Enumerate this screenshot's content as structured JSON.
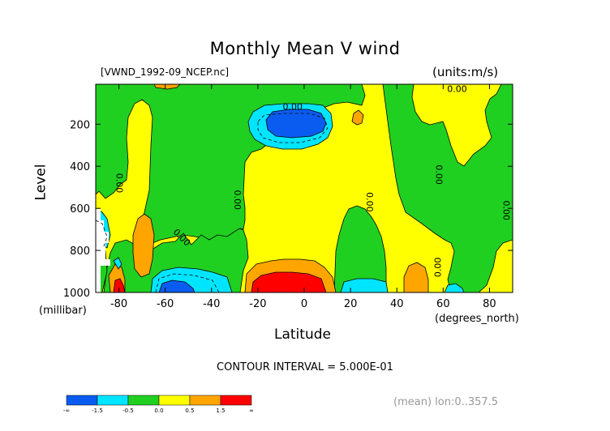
{
  "chart_data": {
    "type": "heatmap",
    "title": "Monthly Mean V wind",
    "dataset_label": "[VWND_1992-09_NCEP.nc]",
    "units_label": "(units:m/s)",
    "xlabel": "Latitude",
    "x_unit": "(degrees_north)",
    "ylabel": "Level",
    "y_unit": "(millibar)",
    "xlim": [
      -90,
      90
    ],
    "ylim": [
      1000,
      10
    ],
    "x_ticks": [
      -80,
      -60,
      -40,
      -20,
      0,
      20,
      40,
      60,
      80
    ],
    "y_ticks": [
      200,
      400,
      600,
      800,
      1000
    ],
    "contour_interval_text": "CONTOUR INTERVAL = 5.000E-01",
    "contour_labels": [
      {
        "text": "0.00",
        "lat": -5,
        "level": 120,
        "angle": 0
      },
      {
        "text": "0.00",
        "lat": 66,
        "level": 35,
        "angle": 0
      },
      {
        "text": "0.00",
        "lat": -80,
        "level": 480,
        "angle": 90
      },
      {
        "text": "0.00",
        "lat": -29,
        "level": 560,
        "angle": 90
      },
      {
        "text": "0.00",
        "lat": -53,
        "level": 740,
        "angle": 45
      },
      {
        "text": "0.00",
        "lat": 28,
        "level": 570,
        "angle": 90
      },
      {
        "text": "0.00",
        "lat": 58,
        "level": 440,
        "angle": 90
      },
      {
        "text": "0.00",
        "lat": 58,
        "level": 880,
        "angle": -90
      },
      {
        "text": "0.00",
        "lat": 87,
        "level": 610,
        "angle": 90
      }
    ],
    "colorbar": {
      "colors": [
        "#0a5cf0",
        "#00e5ff",
        "#20d020",
        "#ffff00",
        "#ffa500",
        "#ff0000"
      ],
      "labels": [
        "-∞",
        "-1.5",
        "-0.5",
        "0.0",
        "0.5",
        "1.5",
        "∞"
      ]
    },
    "mean_note": "(mean) lon:0..357.5",
    "colors": {
      "strong_negative": "#0a5cf0",
      "negative": "#00e5ff",
      "weak_negative": "#20d020",
      "weak_positive": "#ffff00",
      "positive": "#ffa500",
      "strong_positive": "#ff0000"
    }
  }
}
